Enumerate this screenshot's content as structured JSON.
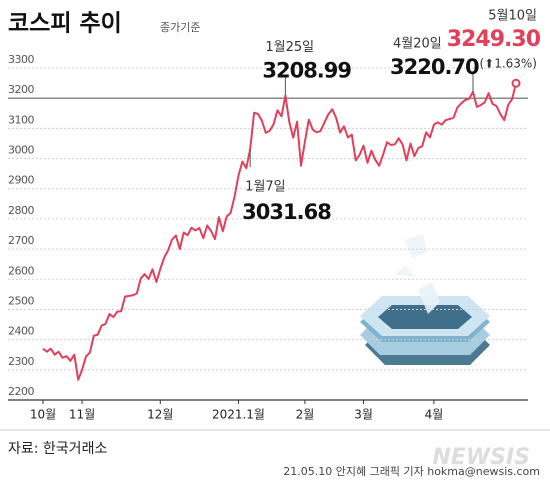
{
  "chart_data": {
    "type": "line",
    "title": "코스피 추이",
    "subtitle": "종가기준",
    "categories": [
      "10월",
      null,
      null,
      null,
      null,
      null,
      null,
      null,
      null,
      null,
      "11월",
      null,
      null,
      null,
      null,
      null,
      null,
      null,
      null,
      null,
      null,
      null,
      null,
      null,
      null,
      null,
      null,
      null,
      null,
      null,
      "12월",
      null,
      null,
      null,
      null,
      null,
      null,
      null,
      null,
      null,
      null,
      null,
      null,
      null,
      null,
      null,
      null,
      null,
      null,
      null,
      "2021.1월",
      null,
      null,
      null,
      null,
      null,
      null,
      null,
      null,
      null,
      null,
      null,
      null,
      null,
      null,
      null,
      null,
      "2월",
      null,
      null,
      null,
      null,
      null,
      null,
      null,
      null,
      null,
      null,
      null,
      null,
      null,
      null,
      "3월",
      null,
      null,
      null,
      null,
      null,
      null,
      null,
      null,
      null,
      null,
      null,
      null,
      null,
      null,
      null,
      null,
      null,
      "4월",
      null,
      null,
      null,
      null,
      null,
      null,
      null,
      null,
      null,
      null,
      null,
      null,
      null,
      null,
      null,
      null,
      null,
      null,
      null,
      null,
      null
    ],
    "values": [
      2370,
      2360,
      2370,
      2350,
      2360,
      2340,
      2345,
      2330,
      2350,
      2267,
      2300,
      2344,
      2357,
      2413,
      2416,
      2447,
      2452,
      2485,
      2475,
      2493,
      2494,
      2543,
      2545,
      2547,
      2553,
      2602,
      2617,
      2601,
      2633,
      2591,
      2634,
      2672,
      2696,
      2731,
      2745,
      2700,
      2755,
      2746,
      2771,
      2762,
      2770,
      2736,
      2778,
      2760,
      2733,
      2806,
      2759,
      2808,
      2820,
      2873,
      2944,
      2990,
      2968,
      3031.68,
      3152,
      3148,
      3125,
      3085,
      3092,
      3114,
      3160,
      3140,
      3208.99,
      3121,
      3069,
      3122,
      2976,
      3056,
      3129,
      3096,
      3087,
      3091,
      3120,
      3147,
      3163,
      3134,
      3086,
      3107,
      3070,
      3079,
      2994,
      3012,
      3043,
      2986,
      3026,
      2996,
      2976,
      3013,
      3054,
      3045,
      3047,
      3067,
      3047,
      2994,
      3050,
      3008,
      3035,
      3041,
      3087,
      3070,
      3112,
      3120,
      3112,
      3127,
      3131,
      3135,
      3169,
      3183,
      3194,
      3198,
      3220.7,
      3171,
      3177,
      3186,
      3217,
      3181,
      3174,
      3147,
      3127,
      3178,
      3197,
      3249.3
    ],
    "color": "#e2405a",
    "ylim": [
      2200,
      3300
    ],
    "yticks": [
      2200,
      2300,
      2400,
      2500,
      2600,
      2700,
      2800,
      2900,
      3000,
      3100,
      3200,
      3300
    ],
    "highlight_line": 3200,
    "grid": true,
    "annotations": [
      {
        "label": "1월7일",
        "value": 3031.68
      },
      {
        "label": "1월25일",
        "value": 3208.99
      },
      {
        "label": "4월20일",
        "value": {
          "value": 3220.7,
          "label": "3220.70"
        }
      },
      {
        "label": "5월10일",
        "value": {
          "value": 3249.3,
          "label": "3249.30"
        },
        "change": "(⬆1.63%)"
      }
    ],
    "source": "자료: 한국거래소",
    "credit": "21.05.10 안지혜 그래픽 기자 hokma@newsis.com",
    "watermark": "NEWSIS"
  }
}
